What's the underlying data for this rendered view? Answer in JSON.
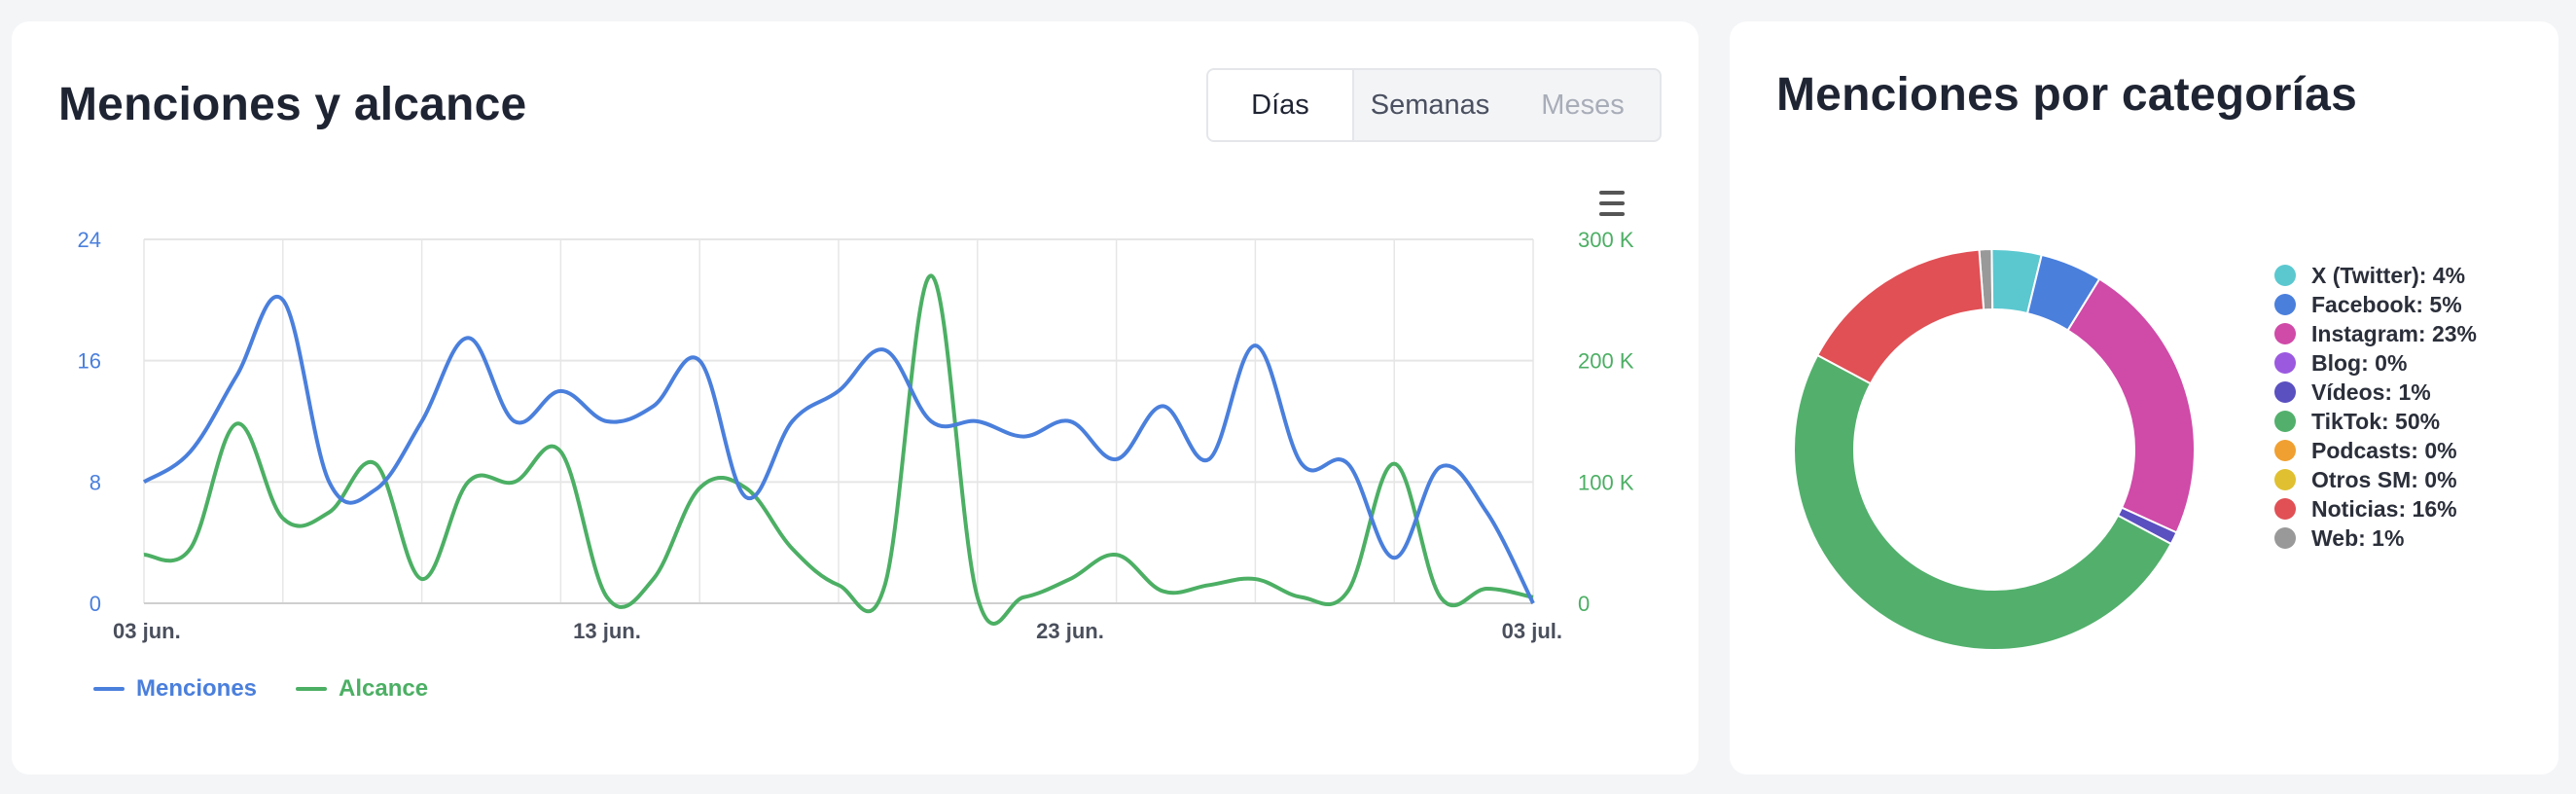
{
  "left_card": {
    "title": "Menciones y alcance",
    "toggle": [
      {
        "label": "Días",
        "state": "active"
      },
      {
        "label": "Semanas",
        "state": "normal"
      },
      {
        "label": "Meses",
        "state": "disabled"
      }
    ],
    "menu_icon": "hamburger-menu-icon"
  },
  "right_card": {
    "title": "Menciones por categorías"
  },
  "colors": {
    "menciones": "#4a7fdc",
    "alcance": "#4caf64",
    "grid": "#e6e6e6",
    "axis_left": "#4a7fdc",
    "axis_right": "#4caf64"
  },
  "chart_data": [
    {
      "type": "line",
      "x": [
        "2023-06-03",
        "2023-06-04",
        "2023-06-05",
        "2023-06-06",
        "2023-06-07",
        "2023-06-08",
        "2023-06-09",
        "2023-06-10",
        "2023-06-11",
        "2023-06-12",
        "2023-06-13",
        "2023-06-14",
        "2023-06-15",
        "2023-06-16",
        "2023-06-17",
        "2023-06-18",
        "2023-06-19",
        "2023-06-20",
        "2023-06-21",
        "2023-06-22",
        "2023-06-23",
        "2023-06-24",
        "2023-06-25",
        "2023-06-26",
        "2023-06-27",
        "2023-06-28",
        "2023-06-29",
        "2023-06-30",
        "2023-07-01",
        "2023-07-02",
        "2023-07-03"
      ],
      "x_tick_labels": [
        {
          "date": "2023-06-03",
          "label": "03 jun."
        },
        {
          "date": "2023-06-13",
          "label": "13 jun."
        },
        {
          "date": "2023-06-23",
          "label": "23 jun."
        },
        {
          "date": "2023-07-03",
          "label": "03 jul."
        }
      ],
      "y_left": {
        "ticks": [
          "0",
          "8",
          "16",
          "24"
        ],
        "range": [
          0,
          24
        ]
      },
      "y_right": {
        "ticks": [
          "0",
          "100 K",
          "200 K",
          "300 K"
        ],
        "range": [
          0,
          300000
        ]
      },
      "series": [
        {
          "name": "Menciones",
          "axis": "left",
          "values": [
            8,
            10,
            15,
            20,
            8,
            7.5,
            12,
            17.5,
            12,
            14,
            12,
            13,
            16,
            7,
            12,
            14,
            16.7,
            12,
            12,
            11,
            12,
            9.5,
            13,
            9.5,
            17,
            9.2,
            9.2,
            3,
            9,
            6,
            0
          ]
        },
        {
          "name": "Alcance",
          "axis": "right",
          "values": [
            40000,
            45000,
            148000,
            70000,
            75000,
            115000,
            20000,
            100000,
            100000,
            125000,
            5000,
            20000,
            95000,
            95000,
            45000,
            15000,
            15000,
            270000,
            5000,
            5000,
            20000,
            40000,
            10000,
            15000,
            20000,
            5000,
            10000,
            115000,
            5000,
            12000,
            5000
          ]
        }
      ],
      "legend_position": "bottom-left",
      "grid": true
    },
    {
      "type": "pie",
      "subtype": "donut",
      "categories": [
        "X (Twitter)",
        "Facebook",
        "Instagram",
        "Blog",
        "Vídeos",
        "TikTok",
        "Podcasts",
        "Otros SM",
        "Noticias",
        "Web"
      ],
      "legend_labels": [
        "X (Twitter): 4%",
        "Facebook: 5%",
        "Instagram: 23%",
        "Blog: 0%",
        "Vídeos: 1%",
        "TikTok: 50%",
        "Podcasts: 0%",
        "Otros SM: 0%",
        "Noticias: 16%",
        "Web: 1%"
      ],
      "values": [
        4,
        5,
        23,
        0,
        1,
        50,
        0,
        0,
        16,
        1
      ],
      "colors": [
        "#5bc8d0",
        "#4a7fdc",
        "#d04aa8",
        "#9b59e0",
        "#5a50c0",
        "#52b06c",
        "#f0a030",
        "#e0c030",
        "#e05055",
        "#999999"
      ],
      "legend_position": "right"
    }
  ]
}
